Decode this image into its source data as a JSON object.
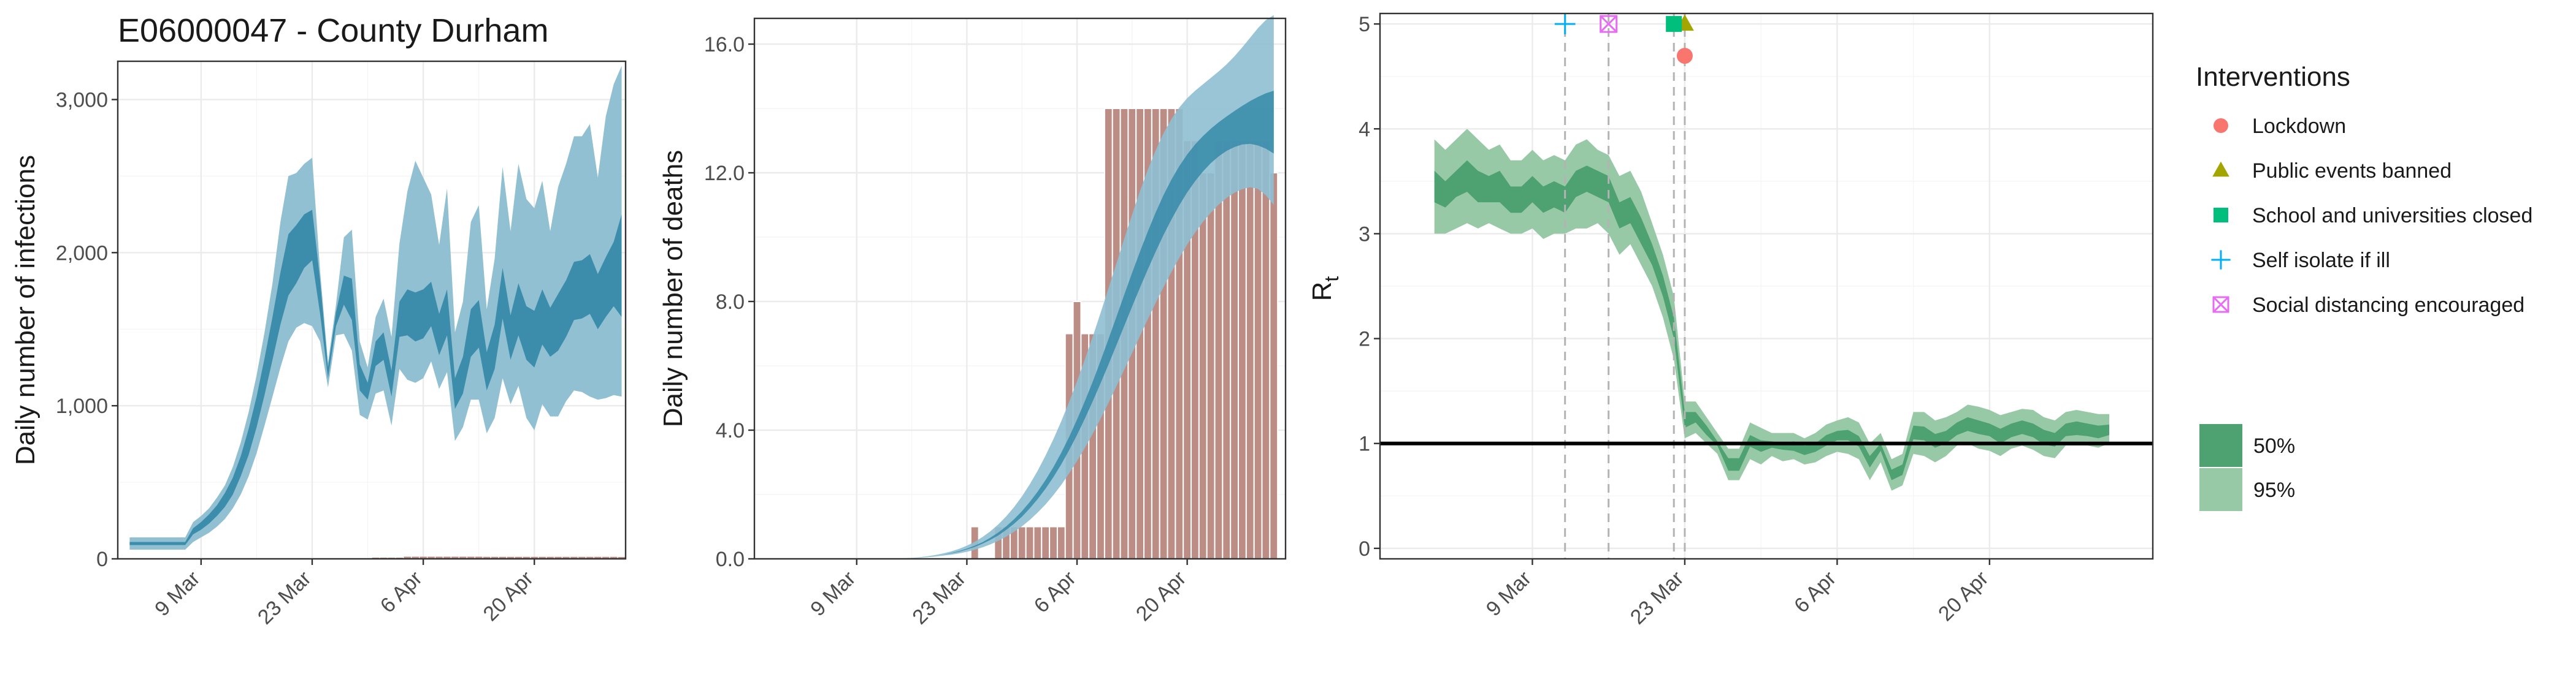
{
  "colors": {
    "bars": "#bc8d85",
    "bars_stroke": "#ffffff",
    "band_outer": "#8ebfd1",
    "band_inner": "#3b8dab",
    "rt_outer": "#97c9a6",
    "rt_inner": "#4ea170",
    "threshold_line": "#000000",
    "lockdown": "#f8766d",
    "public_events": "#a3a500",
    "schools": "#00bf7d",
    "self_isolate": "#00b0f6",
    "social_distancing": "#e76bf3"
  },
  "chart_data": [
    {
      "type": "area",
      "panel": "infections",
      "title": "E06000047 - County Durham",
      "xlabel": "",
      "ylabel": "Daily number of infections",
      "x_ticks": [
        "9 Mar",
        "23 Mar",
        "6 Apr",
        "20 Apr"
      ],
      "y_ticks": [
        "0",
        "1,000",
        "2,000",
        "3,000"
      ],
      "ylim": [
        0,
        3250
      ],
      "x_start": "2020-02-29",
      "days": 63,
      "series": [
        {
          "name": "95%",
          "lower": [
            60,
            60,
            60,
            60,
            60,
            60,
            60,
            60,
            110,
            140,
            170,
            210,
            260,
            330,
            420,
            540,
            690,
            870,
            1060,
            1250,
            1420,
            1510,
            1540,
            1520,
            1420,
            1120,
            1460,
            1470,
            1360,
            940,
            910,
            1080,
            1100,
            870,
            1240,
            1170,
            1150,
            1180,
            1290,
            1110,
            1220,
            770,
            860,
            1040,
            1040,
            820,
            920,
            1180,
            1010,
            1130,
            920,
            840,
            1010,
            930,
            930,
            1030,
            1100,
            1090,
            1060,
            1040,
            1050,
            1070,
            1060
          ],
          "upper": [
            140,
            140,
            140,
            140,
            140,
            140,
            140,
            140,
            240,
            280,
            330,
            400,
            480,
            600,
            760,
            960,
            1200,
            1480,
            1800,
            2200,
            2500,
            2520,
            2580,
            2620,
            1880,
            1280,
            1660,
            2100,
            2150,
            1420,
            1250,
            1580,
            1700,
            1450,
            2060,
            2400,
            2600,
            2490,
            2380,
            2050,
            2420,
            1480,
            1680,
            2200,
            2310,
            1630,
            1960,
            2560,
            2140,
            2580,
            2350,
            2290,
            2470,
            2140,
            2430,
            2580,
            2760,
            2760,
            2840,
            2490,
            2890,
            3100,
            3220
          ]
        },
        {
          "name": "50%",
          "lower": [
            90,
            90,
            90,
            90,
            90,
            90,
            90,
            90,
            160,
            190,
            230,
            280,
            340,
            420,
            540,
            680,
            860,
            1070,
            1300,
            1530,
            1720,
            1800,
            1900,
            1950,
            1600,
            1180,
            1520,
            1660,
            1560,
            1100,
            1040,
            1260,
            1300,
            1060,
            1450,
            1460,
            1420,
            1440,
            1520,
            1330,
            1460,
            980,
            1080,
            1320,
            1380,
            1100,
            1240,
            1570,
            1300,
            1460,
            1300,
            1250,
            1400,
            1320,
            1360,
            1450,
            1560,
            1570,
            1600,
            1500,
            1580,
            1650,
            1580
          ],
          "upper": [
            110,
            110,
            110,
            110,
            110,
            110,
            110,
            110,
            200,
            240,
            290,
            350,
            430,
            530,
            670,
            850,
            1060,
            1310,
            1580,
            1870,
            2120,
            2180,
            2250,
            2280,
            1820,
            1250,
            1610,
            1850,
            1830,
            1270,
            1150,
            1420,
            1480,
            1230,
            1680,
            1760,
            1740,
            1760,
            1810,
            1600,
            1760,
            1180,
            1320,
            1630,
            1690,
            1350,
            1530,
            1900,
            1590,
            1800,
            1650,
            1620,
            1760,
            1640,
            1730,
            1820,
            1940,
            1950,
            1990,
            1860,
            1970,
            2070,
            2250
          ]
        }
      ],
      "bar_values": [
        0,
        0,
        0,
        0,
        0,
        0,
        0,
        0,
        0,
        0,
        0,
        0,
        0,
        0,
        0,
        0,
        0,
        0,
        0,
        0,
        0,
        0,
        0,
        0,
        1,
        1,
        0,
        1,
        1,
        1,
        0,
        8,
        8,
        8,
        8,
        14,
        14,
        14,
        14,
        14,
        14,
        14,
        14,
        14,
        14,
        13,
        13,
        13,
        13,
        13,
        13,
        13,
        13,
        13,
        13,
        13,
        13,
        13,
        13,
        13,
        13,
        13,
        12
      ]
    },
    {
      "type": "bar",
      "panel": "deaths",
      "title": "",
      "xlabel": "",
      "ylabel": "Daily number of deaths",
      "x_ticks": [
        "9 Mar",
        "23 Mar",
        "6 Apr",
        "20 Apr"
      ],
      "y_ticks": [
        "0.0",
        "4.0",
        "8.0",
        "12.0",
        "16.0"
      ],
      "ylim": [
        0,
        16.8
      ],
      "x_start": "2020-02-29",
      "days": 63,
      "values": [
        0,
        0,
        0,
        0,
        0,
        0,
        0,
        0,
        0,
        0,
        0,
        0,
        0,
        0,
        0,
        0,
        0,
        0,
        0,
        0,
        0,
        0,
        0,
        0,
        1,
        0,
        0,
        1,
        1,
        1,
        1,
        1,
        1,
        1,
        1,
        1,
        7,
        8,
        7,
        7,
        7,
        14,
        14,
        14,
        14,
        14,
        14,
        14,
        14,
        14,
        14,
        13,
        13,
        12,
        12,
        13,
        13,
        13,
        13,
        13,
        13,
        13,
        12
      ],
      "series": [
        {
          "name": "95%",
          "lower": [
            0,
            0,
            0,
            0,
            0,
            0,
            0,
            0,
            0,
            0,
            0,
            0,
            0,
            0,
            0,
            0.01,
            0.02,
            0.03,
            0.05,
            0.07,
            0.1,
            0.13,
            0.17,
            0.22,
            0.28,
            0.36,
            0.45,
            0.56,
            0.69,
            0.84,
            1.01,
            1.21,
            1.44,
            1.69,
            1.98,
            2.3,
            2.66,
            3.04,
            3.45,
            3.89,
            4.36,
            4.85,
            5.36,
            5.88,
            6.4,
            6.93,
            7.45,
            7.96,
            8.45,
            8.92,
            9.36,
            9.77,
            10.14,
            10.47,
            10.76,
            11.01,
            11.22,
            11.38,
            11.49,
            11.55,
            11.5,
            11.3,
            11.0
          ],
          "upper": [
            0,
            0,
            0,
            0,
            0,
            0,
            0,
            0,
            0,
            0,
            0,
            0,
            0,
            0,
            0.01,
            0.02,
            0.03,
            0.05,
            0.08,
            0.12,
            0.17,
            0.23,
            0.31,
            0.41,
            0.53,
            0.68,
            0.86,
            1.07,
            1.32,
            1.61,
            1.94,
            2.32,
            2.74,
            3.21,
            3.72,
            4.28,
            4.88,
            5.52,
            6.2,
            6.91,
            7.65,
            8.41,
            9.18,
            9.95,
            10.7,
            11.43,
            12.1,
            12.7,
            13.23,
            13.67,
            14.03,
            14.32,
            14.55,
            14.75,
            14.95,
            15.15,
            15.37,
            15.62,
            15.9,
            16.2,
            16.5,
            16.75,
            16.9
          ]
        },
        {
          "name": "50%",
          "lower": [
            0,
            0,
            0,
            0,
            0,
            0,
            0,
            0,
            0,
            0,
            0,
            0,
            0,
            0,
            0,
            0.01,
            0.02,
            0.04,
            0.06,
            0.09,
            0.13,
            0.17,
            0.22,
            0.29,
            0.37,
            0.47,
            0.59,
            0.73,
            0.9,
            1.09,
            1.31,
            1.57,
            1.86,
            2.18,
            2.54,
            2.94,
            3.38,
            3.85,
            4.36,
            4.9,
            5.46,
            6.04,
            6.64,
            7.24,
            7.84,
            8.43,
            9.0,
            9.55,
            10.07,
            10.55,
            10.99,
            11.39,
            11.74,
            12.04,
            12.3,
            12.51,
            12.68,
            12.8,
            12.88,
            12.9,
            12.85,
            12.75,
            12.6
          ],
          "upper": [
            0,
            0,
            0,
            0,
            0,
            0,
            0,
            0,
            0,
            0,
            0,
            0,
            0,
            0,
            0.01,
            0.01,
            0.02,
            0.04,
            0.06,
            0.09,
            0.13,
            0.18,
            0.24,
            0.32,
            0.41,
            0.52,
            0.66,
            0.82,
            1.01,
            1.23,
            1.48,
            1.77,
            2.09,
            2.45,
            2.85,
            3.3,
            3.79,
            4.33,
            4.9,
            5.51,
            6.16,
            6.83,
            7.52,
            8.21,
            8.89,
            9.55,
            10.18,
            10.77,
            11.31,
            11.79,
            12.21,
            12.57,
            12.88,
            13.14,
            13.37,
            13.57,
            13.75,
            13.92,
            14.08,
            14.23,
            14.36,
            14.47,
            14.55
          ]
        }
      ]
    },
    {
      "type": "area",
      "panel": "rt",
      "title": "",
      "xlabel": "",
      "ylabel": "R",
      "ylabel_sub": "t",
      "x_ticks": [
        "9 Mar",
        "23 Mar",
        "6 Apr",
        "20 Apr"
      ],
      "y_ticks": [
        "0",
        "1",
        "2",
        "3",
        "4",
        "5"
      ],
      "ylim": [
        -0.1,
        5.1
      ],
      "x_start": "2020-02-29",
      "days": 63,
      "threshold": 1,
      "series": [
        {
          "name": "95%",
          "lower": [
            3.0,
            3.0,
            3.05,
            3.1,
            3.05,
            3.1,
            3.05,
            3.0,
            3.0,
            3.05,
            2.95,
            3.0,
            3.0,
            3.05,
            3.05,
            3.1,
            3.0,
            2.8,
            2.9,
            2.7,
            2.5,
            2.2,
            1.8,
            1.05,
            1.1,
            1.0,
            0.9,
            0.65,
            0.65,
            0.85,
            0.8,
            0.88,
            0.83,
            0.85,
            0.8,
            0.82,
            0.88,
            0.92,
            0.9,
            0.85,
            0.65,
            0.82,
            0.55,
            0.6,
            0.9,
            0.88,
            0.82,
            0.88,
            0.98,
            1.0,
            0.95,
            0.93,
            0.88,
            0.95,
            0.98,
            0.94,
            0.88,
            0.86,
            0.98,
            0.98,
            0.98,
            0.96,
            1.0
          ],
          "upper": [
            3.9,
            3.8,
            3.9,
            4.0,
            3.9,
            3.8,
            3.85,
            3.7,
            3.7,
            3.8,
            3.7,
            3.75,
            3.7,
            3.85,
            3.9,
            3.8,
            3.75,
            3.55,
            3.6,
            3.4,
            3.1,
            2.8,
            2.4,
            1.4,
            1.4,
            1.25,
            1.1,
            0.95,
            0.95,
            1.2,
            1.15,
            1.1,
            1.1,
            1.1,
            1.05,
            1.1,
            1.18,
            1.22,
            1.25,
            1.2,
            1.0,
            1.1,
            0.85,
            0.9,
            1.3,
            1.3,
            1.22,
            1.25,
            1.3,
            1.37,
            1.35,
            1.32,
            1.27,
            1.3,
            1.33,
            1.32,
            1.25,
            1.22,
            1.3,
            1.32,
            1.3,
            1.28,
            1.28
          ]
        },
        {
          "name": "50%",
          "lower": [
            3.3,
            3.25,
            3.35,
            3.4,
            3.3,
            3.3,
            3.3,
            3.2,
            3.2,
            3.3,
            3.2,
            3.25,
            3.2,
            3.35,
            3.4,
            3.35,
            3.3,
            3.05,
            3.1,
            2.9,
            2.7,
            2.4,
            2.0,
            1.15,
            1.2,
            1.08,
            0.98,
            0.74,
            0.74,
            0.97,
            0.92,
            0.96,
            0.94,
            0.93,
            0.89,
            0.92,
            0.98,
            1.03,
            1.03,
            0.97,
            0.77,
            0.93,
            0.65,
            0.7,
            1.04,
            1.03,
            0.96,
            1.0,
            1.08,
            1.12,
            1.09,
            1.07,
            1.0,
            1.06,
            1.09,
            1.06,
            0.99,
            0.97,
            1.07,
            1.08,
            1.07,
            1.05,
            1.08
          ],
          "upper": [
            3.6,
            3.5,
            3.6,
            3.7,
            3.6,
            3.55,
            3.6,
            3.45,
            3.45,
            3.55,
            3.45,
            3.5,
            3.45,
            3.6,
            3.65,
            3.6,
            3.55,
            3.3,
            3.35,
            3.15,
            2.9,
            2.6,
            2.2,
            1.3,
            1.3,
            1.17,
            1.02,
            0.86,
            0.86,
            1.08,
            1.03,
            1.02,
            1.0,
            1.02,
            0.98,
            1.0,
            1.08,
            1.12,
            1.13,
            1.07,
            0.88,
            1.0,
            0.75,
            0.8,
            1.17,
            1.16,
            1.09,
            1.12,
            1.2,
            1.25,
            1.22,
            1.19,
            1.14,
            1.19,
            1.22,
            1.19,
            1.13,
            1.1,
            1.19,
            1.21,
            1.19,
            1.17,
            1.18
          ]
        }
      ]
    }
  ],
  "interventions": {
    "title": "Interventions",
    "items": [
      {
        "label": "Lockdown",
        "shape": "circle-icon",
        "color_key": "lockdown",
        "day": 23
      },
      {
        "label": "Public events banned",
        "shape": "triangle-icon",
        "color_key": "public_events",
        "day": 23
      },
      {
        "label": "School and universities closed",
        "shape": "square-icon",
        "color_key": "schools",
        "day": 22
      },
      {
        "label": "Self isolate if ill",
        "shape": "plus-icon",
        "color_key": "self_isolate",
        "day": 12
      },
      {
        "label": "Social distancing encouraged",
        "shape": "square-cross-icon",
        "color_key": "social_distancing",
        "day": 16
      }
    ]
  },
  "credible_intervals": {
    "items": [
      {
        "label": "50%",
        "color_key": "rt_inner"
      },
      {
        "label": "95%",
        "color_key": "rt_outer"
      }
    ]
  }
}
